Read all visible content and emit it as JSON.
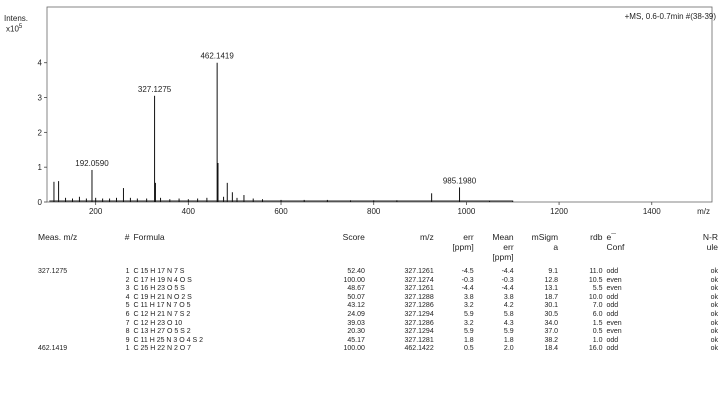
{
  "chart_data": {
    "type": "mass_spectrum",
    "ylabel": "Intens.",
    "yexp_base": "x10",
    "yexp_power": "5",
    "xlabel": "m/z",
    "xlim": [
      95,
      1530
    ],
    "ylim": [
      0,
      5.6
    ],
    "xticks": [
      200,
      400,
      600,
      800,
      1000,
      1200,
      1400
    ],
    "yticks": [
      0,
      1,
      2,
      3,
      4
    ],
    "run_label": "+MS, 0.6-0.7min #(38-39)",
    "peak_labels": [
      {
        "mz": 192.059,
        "text": "192.0590"
      },
      {
        "mz": 327.1275,
        "text": "327.1275"
      },
      {
        "mz": 462.1419,
        "text": "462.1419"
      },
      {
        "mz": 985.198,
        "text": "985.1980"
      }
    ],
    "peaks": [
      {
        "mz": 110,
        "i": 0.58
      },
      {
        "mz": 120,
        "i": 0.6
      },
      {
        "mz": 135,
        "i": 0.12
      },
      {
        "mz": 150,
        "i": 0.1
      },
      {
        "mz": 165,
        "i": 0.15
      },
      {
        "mz": 180,
        "i": 0.1
      },
      {
        "mz": 192.059,
        "i": 0.92
      },
      {
        "mz": 200,
        "i": 0.12
      },
      {
        "mz": 215,
        "i": 0.1
      },
      {
        "mz": 230,
        "i": 0.1
      },
      {
        "mz": 245,
        "i": 0.12
      },
      {
        "mz": 260,
        "i": 0.4
      },
      {
        "mz": 275,
        "i": 0.12
      },
      {
        "mz": 290,
        "i": 0.1
      },
      {
        "mz": 310,
        "i": 0.1
      },
      {
        "mz": 327.1275,
        "i": 3.05
      },
      {
        "mz": 329,
        "i": 0.55
      },
      {
        "mz": 340,
        "i": 0.12
      },
      {
        "mz": 360,
        "i": 0.08
      },
      {
        "mz": 380,
        "i": 0.1
      },
      {
        "mz": 400,
        "i": 0.08
      },
      {
        "mz": 420,
        "i": 0.1
      },
      {
        "mz": 440,
        "i": 0.12
      },
      {
        "mz": 462.1419,
        "i": 4.0
      },
      {
        "mz": 464,
        "i": 1.12
      },
      {
        "mz": 476,
        "i": 0.15
      },
      {
        "mz": 484,
        "i": 0.55
      },
      {
        "mz": 495,
        "i": 0.28
      },
      {
        "mz": 505,
        "i": 0.12
      },
      {
        "mz": 520,
        "i": 0.2
      },
      {
        "mz": 540,
        "i": 0.1
      },
      {
        "mz": 560,
        "i": 0.08
      },
      {
        "mz": 600,
        "i": 0.06
      },
      {
        "mz": 650,
        "i": 0.06
      },
      {
        "mz": 700,
        "i": 0.06
      },
      {
        "mz": 750,
        "i": 0.05
      },
      {
        "mz": 800,
        "i": 0.05
      },
      {
        "mz": 850,
        "i": 0.05
      },
      {
        "mz": 925,
        "i": 0.25
      },
      {
        "mz": 985.198,
        "i": 0.42
      },
      {
        "mz": 1050,
        "i": 0.04
      },
      {
        "mz": 1100,
        "i": 0.04
      }
    ]
  },
  "table": {
    "headers": [
      {
        "key": "meas",
        "lines": [
          "Meas. m/z"
        ]
      },
      {
        "key": "num",
        "lines": [
          "#"
        ]
      },
      {
        "key": "formula",
        "lines": [
          "Formula"
        ]
      },
      {
        "key": "score",
        "lines": [
          "Score"
        ]
      },
      {
        "key": "mz",
        "lines": [
          "m/z"
        ]
      },
      {
        "key": "err",
        "lines": [
          "err",
          "[ppm]"
        ]
      },
      {
        "key": "mean",
        "lines": [
          "Mean",
          "err",
          "[ppm]"
        ]
      },
      {
        "key": "msigma",
        "lines": [
          "mSigm",
          "a"
        ]
      },
      {
        "key": "rdb",
        "lines": [
          "rdb"
        ]
      },
      {
        "key": "conf",
        "lines": [
          "e¯",
          "Conf"
        ]
      },
      {
        "key": "nrule",
        "lines": [
          "N-R",
          "ule"
        ]
      }
    ],
    "rows": [
      {
        "meas": "327.1275",
        "num": "1",
        "formula": "C 15 H 17 N 7 S",
        "score": "52.40",
        "mz": "327.1261",
        "err": "-4.5",
        "mean": "-4.4",
        "msigma": "9.1",
        "rdb": "11.0",
        "conf": "odd",
        "nrule": "ok"
      },
      {
        "meas": "",
        "num": "2",
        "formula": "C 17 H 19 N 4 O S",
        "score": "100.00",
        "mz": "327.1274",
        "err": "-0.3",
        "mean": "-0.3",
        "msigma": "12.8",
        "rdb": "10.5",
        "conf": "even",
        "nrule": "ok"
      },
      {
        "meas": "",
        "num": "3",
        "formula": "C 16 H 23 O 5 S",
        "score": "48.67",
        "mz": "327.1261",
        "err": "-4.4",
        "mean": "-4.4",
        "msigma": "13.1",
        "rdb": "5.5",
        "conf": "even",
        "nrule": "ok"
      },
      {
        "meas": "",
        "num": "4",
        "formula": "C 19 H 21 N O 2 S",
        "score": "50.07",
        "mz": "327.1288",
        "err": "3.8",
        "mean": "3.8",
        "msigma": "18.7",
        "rdb": "10.0",
        "conf": "odd",
        "nrule": "ok"
      },
      {
        "meas": "",
        "num": "5",
        "formula": "C 11 H 17 N 7 O 5",
        "score": "43.12",
        "mz": "327.1286",
        "err": "3.2",
        "mean": "4.2",
        "msigma": "30.1",
        "rdb": "7.0",
        "conf": "odd",
        "nrule": "ok"
      },
      {
        "meas": "",
        "num": "6",
        "formula": "C 12 H 21 N 7 S 2",
        "score": "24.09",
        "mz": "327.1294",
        "err": "5.9",
        "mean": "5.8",
        "msigma": "30.5",
        "rdb": "6.0",
        "conf": "odd",
        "nrule": "ok"
      },
      {
        "meas": "",
        "num": "7",
        "formula": "C 12 H 23 O 10",
        "score": "39.03",
        "mz": "327.1286",
        "err": "3.2",
        "mean": "4.3",
        "msigma": "34.0",
        "rdb": "1.5",
        "conf": "even",
        "nrule": "ok"
      },
      {
        "meas": "",
        "num": "8",
        "formula": "C 13 H 27 O 5 S 2",
        "score": "20.30",
        "mz": "327.1294",
        "err": "5.9",
        "mean": "5.9",
        "msigma": "37.0",
        "rdb": "0.5",
        "conf": "even",
        "nrule": "ok"
      },
      {
        "meas": "",
        "num": "9",
        "formula": "C 11 H 25 N 3 O 4 S 2",
        "score": "45.17",
        "mz": "327.1281",
        "err": "1.8",
        "mean": "1.8",
        "msigma": "38.2",
        "rdb": "1.0",
        "conf": "odd",
        "nrule": "ok"
      },
      {
        "meas": "462.1419",
        "num": "1",
        "formula": "C 25 H 22 N 2 O 7",
        "score": "100.00",
        "mz": "462.1422",
        "err": "0.5",
        "mean": "2.0",
        "msigma": "18.4",
        "rdb": "16.0",
        "conf": "odd",
        "nrule": "ok"
      }
    ]
  }
}
